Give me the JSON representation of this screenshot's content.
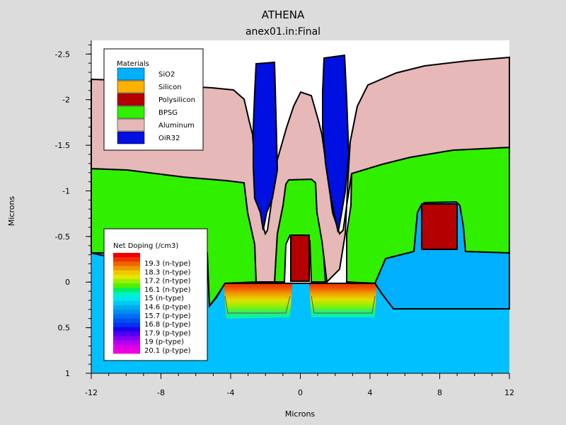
{
  "chart_data": {
    "type": "table",
    "title": "ATHENA",
    "subtitle": "anex01.in:Final",
    "xlabel": "Microns",
    "ylabel": "Microns",
    "xlim": [
      -12,
      12
    ],
    "ylim": [
      1,
      -2.65
    ],
    "x_ticks": [
      "-12",
      "-8",
      "-4",
      "0",
      "4",
      "8",
      "12"
    ],
    "y_ticks": [
      "-2.5",
      "-2",
      "-1.5",
      "-1",
      "-0.5",
      "0",
      "0.5",
      "1"
    ],
    "materials_title": "Materials",
    "materials": [
      {
        "name": "SiO2",
        "color": "#00b0ff"
      },
      {
        "name": "Silicon",
        "color": "#ffb000"
      },
      {
        "name": "Polysilicon",
        "color": "#b40000"
      },
      {
        "name": "BPSG",
        "color": "#30f000"
      },
      {
        "name": "Aluminum",
        "color": "#e6b8b8"
      },
      {
        "name": "OiR32",
        "color": "#0010e0"
      }
    ],
    "doping_title": "Net Doping (/cm3)",
    "doping_levels": [
      {
        "label": "19.3 (n-type)",
        "color": "#f03000"
      },
      {
        "label": "18.3 (n-type)",
        "color": "#f09000"
      },
      {
        "label": "17.2 (n-type)",
        "color": "#e0e000"
      },
      {
        "label": "16.1 (n-type)",
        "color": "#70f000"
      },
      {
        "label": "15 (n-type)",
        "color": "#00f0c0"
      },
      {
        "label": "14.6 (p-type)",
        "color": "#00e0f0"
      },
      {
        "label": "15.7 (p-type)",
        "color": "#00b0f0"
      },
      {
        "label": "16.8 (p-type)",
        "color": "#0060f0"
      },
      {
        "label": "17.9 (p-type)",
        "color": "#2000f0"
      },
      {
        "label": "19 (p-type)",
        "color": "#9000f0"
      },
      {
        "label": "20.1 (p-type)",
        "color": "#e000e0"
      }
    ]
  }
}
